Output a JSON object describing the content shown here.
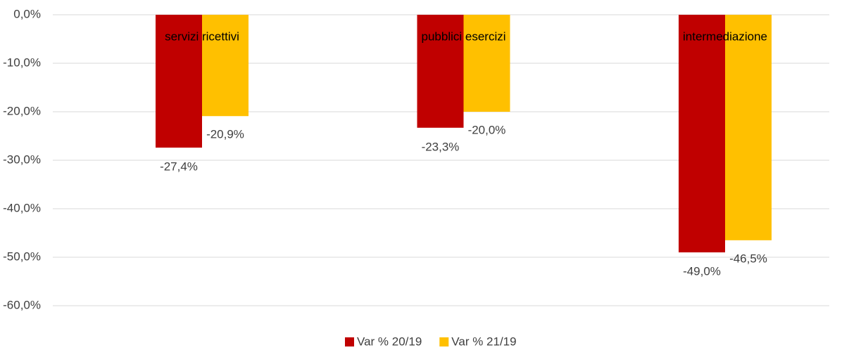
{
  "chart_data": {
    "type": "bar",
    "categories": [
      "servizi ricettivi",
      "pubblici esercizi",
      "intermediazione"
    ],
    "series": [
      {
        "name": "Var % 20/19",
        "color": "#c00000",
        "values": [
          -27.4,
          -23.3,
          -49.0
        ],
        "value_labels": [
          "-27,4%",
          "-23,3%",
          "-49,0%"
        ]
      },
      {
        "name": "Var % 21/19",
        "color": "#ffc000",
        "values": [
          -20.9,
          -20.0,
          -46.5
        ],
        "value_labels": [
          "-20,9%",
          "-20,0%",
          "-46,5%"
        ]
      }
    ],
    "ylim": [
      -60,
      0
    ],
    "yticks": [
      {
        "value": 0,
        "label": "0,0%"
      },
      {
        "value": -10,
        "label": "-10,0%"
      },
      {
        "value": -20,
        "label": "-20,0%"
      },
      {
        "value": -30,
        "label": "-30,0%"
      },
      {
        "value": -40,
        "label": "-40,0%"
      },
      {
        "value": -50,
        "label": "-50,0%"
      },
      {
        "value": -60,
        "label": "-60,0%"
      }
    ],
    "grid": true,
    "legend": "bottom"
  }
}
